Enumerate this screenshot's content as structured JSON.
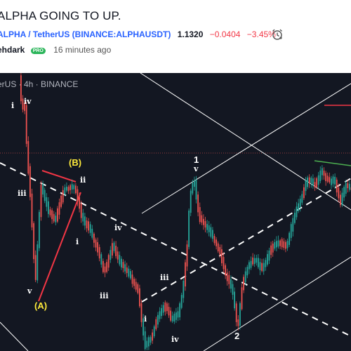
{
  "header": {
    "title": "ALPHA GOING TO UP.",
    "symbol": "ALPHA / TetherUS (BINANCE:ALPHAUSDT)",
    "price": "1.1320",
    "change": "−0.0404",
    "change_pct": "−3.45%",
    "alarm_icon": "alarm-clock-icon",
    "author": "ehdark",
    "pro_badge": "PRO",
    "time_ago": "16 minutes ago"
  },
  "chart": {
    "legend": "erUS · 4h · BINANCE",
    "colors": {
      "background": "#131722",
      "up": "#26a69a",
      "down": "#ef5350",
      "annotation": "#ffeb3b",
      "trendline_red": "#f23645",
      "trendline_green": "#4caf50"
    },
    "wave_labels": {
      "i_top": "i",
      "iv_top": "iv",
      "iii_left": "iii",
      "v_left": "v",
      "A": "(A)",
      "B": "(B)",
      "ii": "ii",
      "i_mid": "i",
      "iv_mid": "iv",
      "iii_low": "iii",
      "iii_mid": "iii",
      "i_low": "i",
      "iv_low": "iv",
      "one": "1",
      "v_high": "v",
      "two": "2"
    }
  }
}
